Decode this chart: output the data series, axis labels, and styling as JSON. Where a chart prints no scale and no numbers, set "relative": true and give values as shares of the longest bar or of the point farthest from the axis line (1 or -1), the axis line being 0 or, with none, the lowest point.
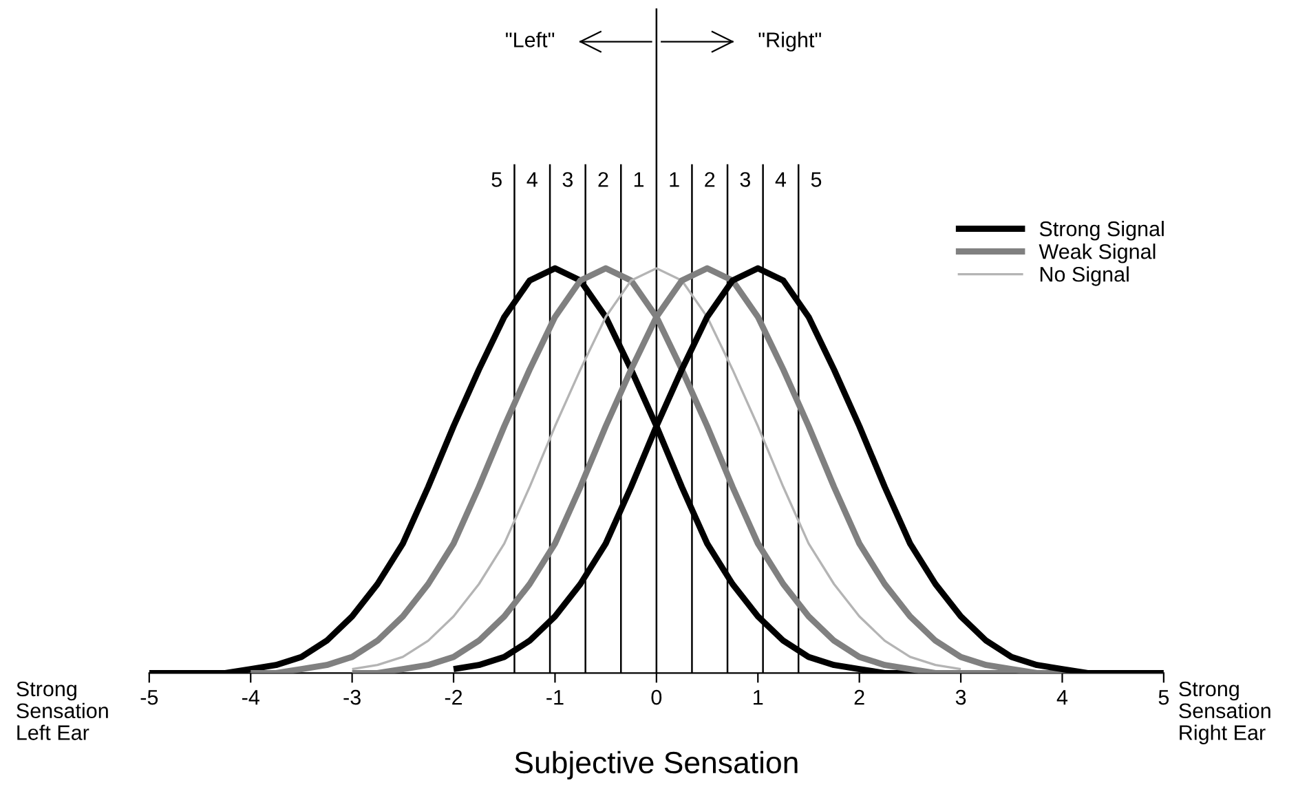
{
  "chart_data": {
    "type": "line",
    "relative": true,
    "xlabel": "Subjective Sensation",
    "xlim": [
      -5,
      5
    ],
    "xticks": [
      -5,
      -4,
      -3,
      -2,
      -1,
      0,
      1,
      2,
      3,
      4,
      5
    ],
    "tick_labels": "x",
    "grid": false,
    "legend": "right",
    "marker": "none",
    "line_style": "solid",
    "series": [
      {
        "name": "Strong Signal",
        "color": "#000000",
        "x": [
          -5,
          -4.75,
          -4.5,
          -4.25,
          -4,
          -3.75,
          -3.5,
          -3.25,
          -3,
          -2.75,
          -2.5,
          -2.25,
          -2,
          -1.75,
          -1.5,
          -1.25,
          -1,
          -0.75,
          -0.5,
          -0.25,
          0,
          0.25,
          0.5,
          0.75,
          1,
          1.25,
          1.5,
          1.75,
          2,
          2.25,
          2.5,
          2.75,
          3
        ],
        "values": [
          0,
          0,
          0,
          0,
          0.01,
          0.02,
          0.04,
          0.08,
          0.14,
          0.22,
          0.32,
          0.46,
          0.61,
          0.75,
          0.88,
          0.97,
          1,
          0.97,
          0.88,
          0.75,
          0.61,
          0.46,
          0.32,
          0.22,
          0.14,
          0.08,
          0.04,
          0.02,
          0.01,
          0,
          0,
          0,
          0
        ]
      },
      {
        "name": "Weak Signal",
        "color": "#808080",
        "x": [
          -4,
          -3.75,
          -3.5,
          -3.25,
          -3,
          -2.75,
          -2.5,
          -2.25,
          -2,
          -1.75,
          -1.5,
          -1.25,
          -1,
          -0.75,
          -0.5,
          -0.25,
          0,
          0.25,
          0.5,
          0.75,
          1,
          1.25,
          1.5,
          1.75,
          2,
          2.25,
          2.5,
          2.75,
          3,
          3.25,
          3.5,
          3.75,
          4
        ],
        "values": [
          0,
          0,
          0.01,
          0.02,
          0.04,
          0.08,
          0.14,
          0.22,
          0.32,
          0.46,
          0.61,
          0.75,
          0.88,
          0.97,
          1,
          0.97,
          0.88,
          0.75,
          0.61,
          0.46,
          0.32,
          0.22,
          0.14,
          0.08,
          0.04,
          0.02,
          0.01,
          0,
          0,
          0,
          0,
          0,
          0
        ]
      },
      {
        "name": "No Signal",
        "color": "#b4b4b4",
        "x": [
          -3,
          -2.75,
          -2.5,
          -2.25,
          -2,
          -1.75,
          -1.5,
          -1.25,
          -1,
          -0.75,
          -0.5,
          -0.25,
          0,
          0.25,
          0.5,
          0.75,
          1,
          1.25,
          1.5,
          1.75,
          2,
          2.25,
          2.5,
          2.75,
          3
        ],
        "values": [
          0.01,
          0.02,
          0.04,
          0.08,
          0.14,
          0.22,
          0.32,
          0.46,
          0.61,
          0.75,
          0.88,
          0.97,
          1,
          0.97,
          0.88,
          0.75,
          0.61,
          0.46,
          0.32,
          0.22,
          0.14,
          0.08,
          0.04,
          0.02,
          0.01
        ]
      },
      {
        "color": "#808080",
        "x": [
          -3,
          -2.75,
          -2.5,
          -2.25,
          -2,
          -1.75,
          -1.5,
          -1.25,
          -1,
          -0.75,
          -0.5,
          -0.25,
          0,
          0.25,
          0.5,
          0.75,
          1,
          1.25,
          1.5,
          1.75,
          2,
          2.25,
          2.5,
          2.75,
          3,
          3.25,
          3.5,
          3.75,
          4,
          4.25,
          4.5,
          4.75,
          5
        ],
        "values": [
          0,
          0,
          0.01,
          0.02,
          0.04,
          0.08,
          0.14,
          0.22,
          0.32,
          0.46,
          0.61,
          0.75,
          0.88,
          0.97,
          1,
          0.97,
          0.88,
          0.75,
          0.61,
          0.46,
          0.32,
          0.22,
          0.14,
          0.08,
          0.04,
          0.02,
          0.01,
          0,
          0,
          0,
          0,
          0,
          0
        ]
      },
      {
        "color": "#000000",
        "x": [
          -2,
          -1.75,
          -1.5,
          -1.25,
          -1,
          -0.75,
          -0.5,
          -0.25,
          0,
          0.25,
          0.5,
          0.75,
          1,
          1.25,
          1.5,
          1.75,
          2,
          2.25,
          2.5,
          2.75,
          3,
          3.25,
          3.5,
          3.75,
          4,
          4.25,
          4.5,
          4.75,
          5
        ],
        "values": [
          0.01,
          0.02,
          0.04,
          0.08,
          0.14,
          0.22,
          0.32,
          0.46,
          0.61,
          0.75,
          0.88,
          0.97,
          1,
          0.97,
          0.88,
          0.75,
          0.61,
          0.46,
          0.32,
          0.22,
          0.14,
          0.08,
          0.04,
          0.02,
          0.01,
          0,
          0,
          0,
          0
        ]
      }
    ],
    "ref_lines": [
      {
        "axis": "x",
        "value": 0,
        "color": "#000000"
      },
      {
        "axis": "x",
        "value": -1.4,
        "color": "#000000"
      },
      {
        "axis": "x",
        "value": -1.05,
        "color": "#000000"
      },
      {
        "axis": "x",
        "value": -0.7,
        "color": "#000000"
      },
      {
        "axis": "x",
        "value": -0.35,
        "color": "#000000"
      },
      {
        "axis": "x",
        "value": 0.35,
        "color": "#000000"
      },
      {
        "axis": "x",
        "value": 0.7,
        "color": "#000000"
      },
      {
        "axis": "x",
        "value": 1.05,
        "color": "#000000"
      },
      {
        "axis": "x",
        "value": 1.4,
        "color": "#000000"
      }
    ],
    "annotations": [
      "\"Left\"",
      "\"Right\"",
      "Strong\nSensation\nLeft Ear",
      "Strong\nSensation\nRight Ear",
      "5",
      "4",
      "3",
      "2",
      "1",
      "1",
      "2",
      "3",
      "4",
      "5"
    ]
  }
}
